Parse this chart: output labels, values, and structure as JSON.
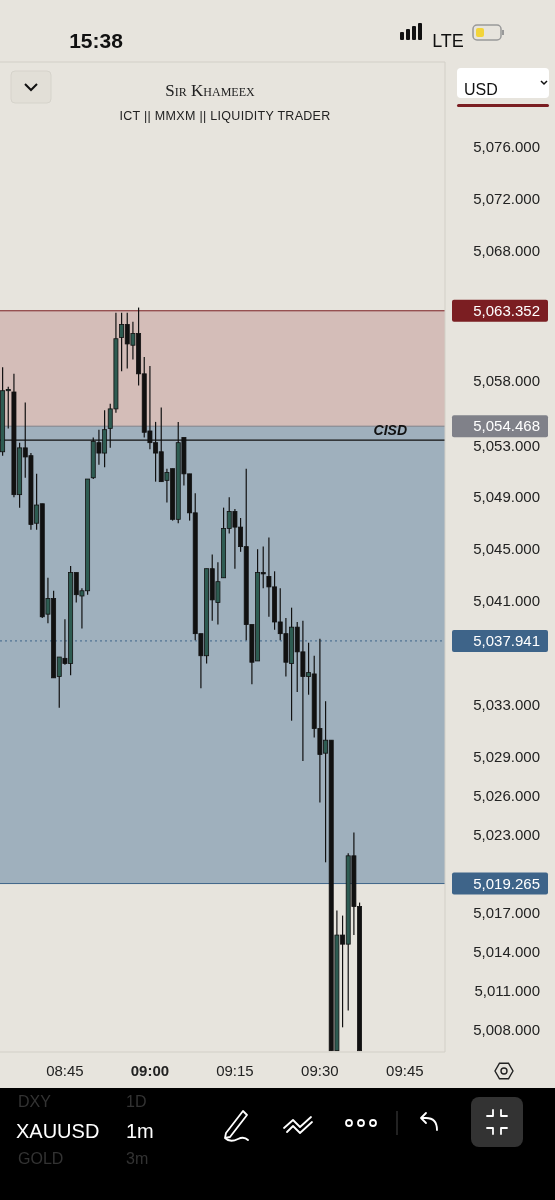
{
  "chart_data": {
    "type": "candlestick",
    "title": "Sir Khameex",
    "subtitle": "ICT || MMXM || LIQUIDITY TRADER",
    "x": [
      8.5667,
      8.5833,
      8.6,
      8.6167,
      8.6333,
      8.65,
      8.6667,
      8.6833,
      8.7,
      8.7167,
      8.7333,
      8.75,
      8.7667,
      8.7833,
      8.8,
      8.8167,
      8.8333,
      8.85,
      8.8667,
      8.8833,
      8.9,
      8.9167,
      8.9333,
      8.95,
      8.9667,
      8.9833,
      9.0,
      9.0167,
      9.0333,
      9.05,
      9.0667,
      9.0833,
      9.1,
      9.1167,
      9.1333,
      9.15,
      9.1667,
      9.1833,
      9.2,
      9.2167,
      9.2333,
      9.25,
      9.2667,
      9.2833,
      9.3,
      9.3167,
      9.3333,
      9.35,
      9.3667,
      9.3833,
      9.4,
      9.4167,
      9.4333,
      9.45,
      9.4667,
      9.4833,
      9.5,
      9.5167,
      9.5333,
      9.55,
      9.5667,
      9.5833,
      9.6,
      9.6167
    ],
    "ohlc": [
      [
        5052.5,
        5059.0,
        5052.2,
        5057.2
      ],
      [
        5057.2,
        5057.5,
        5054.3,
        5057.3
      ],
      [
        5057.1,
        5058.5,
        5049.0,
        5049.2
      ],
      [
        5049.2,
        5053.2,
        5048.2,
        5052.8
      ],
      [
        5052.8,
        5056.3,
        5050.5,
        5052.1
      ],
      [
        5052.2,
        5052.4,
        5046.5,
        5046.9
      ],
      [
        5047.0,
        5050.8,
        5046.5,
        5048.4
      ],
      [
        5048.5,
        5048.5,
        5039.7,
        5039.8
      ],
      [
        5040.0,
        5042.8,
        5039.3,
        5041.2
      ],
      [
        5041.2,
        5041.8,
        5035.1,
        5035.1
      ],
      [
        5035.2,
        5036.7,
        5032.8,
        5036.7
      ],
      [
        5036.6,
        5039.6,
        5036.1,
        5036.2
      ],
      [
        5036.2,
        5043.7,
        5035.3,
        5043.2
      ],
      [
        5043.2,
        5043.2,
        5040.9,
        5041.5
      ],
      [
        5041.4,
        5042.0,
        5038.9,
        5041.8
      ],
      [
        5041.8,
        5050.4,
        5041.5,
        5050.4
      ],
      [
        5050.5,
        5053.6,
        5050.4,
        5053.3
      ],
      [
        5053.2,
        5054.2,
        5051.5,
        5052.4
      ],
      [
        5052.4,
        5055.7,
        5051.3,
        5054.2
      ],
      [
        5054.3,
        5056.2,
        5052.8,
        5055.8
      ],
      [
        5055.8,
        5063.2,
        5055.5,
        5061.2
      ],
      [
        5061.3,
        5063.2,
        5058.7,
        5062.3
      ],
      [
        5062.3,
        5063.2,
        5058.9,
        5060.8
      ],
      [
        5060.7,
        5062.5,
        5059.6,
        5061.6
      ],
      [
        5061.6,
        5063.6,
        5057.6,
        5058.5
      ],
      [
        5058.5,
        5059.8,
        5053.6,
        5054.0
      ],
      [
        5054.1,
        5059.1,
        5052.7,
        5053.2
      ],
      [
        5053.2,
        5054.8,
        5050.2,
        5052.4
      ],
      [
        5052.5,
        5055.9,
        5050.2,
        5050.2
      ],
      [
        5050.3,
        5051.2,
        5048.6,
        5050.9
      ],
      [
        5051.2,
        5051.2,
        5047.2,
        5047.3
      ],
      [
        5047.3,
        5054.8,
        5047.0,
        5053.2
      ],
      [
        5053.6,
        5053.6,
        5049.9,
        5050.8
      ],
      [
        5050.8,
        5050.8,
        5047.2,
        5047.8
      ],
      [
        5047.8,
        5049.3,
        5038.0,
        5038.5
      ],
      [
        5038.5,
        5038.5,
        5034.3,
        5036.8
      ],
      [
        5036.8,
        5043.5,
        5036.2,
        5043.5
      ],
      [
        5043.5,
        5044.6,
        5039.5,
        5041.1
      ],
      [
        5040.9,
        5044.0,
        5039.2,
        5042.5
      ],
      [
        5042.8,
        5048.2,
        5042.8,
        5046.6
      ],
      [
        5046.6,
        5049.0,
        5046.2,
        5047.9
      ],
      [
        5047.9,
        5048.1,
        5043.5,
        5046.7
      ],
      [
        5046.7,
        5047.4,
        5044.8,
        5045.2
      ],
      [
        5045.2,
        5051.2,
        5038.0,
        5039.2
      ],
      [
        5039.2,
        5039.2,
        5034.6,
        5036.3
      ],
      [
        5036.4,
        5045.0,
        5036.4,
        5043.2
      ],
      [
        5043.2,
        5045.2,
        5042.0,
        5043.1
      ],
      [
        5042.9,
        5045.9,
        5039.8,
        5042.1
      ],
      [
        5042.1,
        5043.3,
        5038.8,
        5039.4
      ],
      [
        5039.4,
        5042.0,
        5038.0,
        5038.5
      ],
      [
        5038.5,
        5039.7,
        5035.2,
        5036.3
      ],
      [
        5036.2,
        5040.5,
        5031.8,
        5039.0
      ],
      [
        5039.0,
        5039.4,
        5034.0,
        5037.1
      ],
      [
        5037.1,
        5039.5,
        5028.7,
        5035.2
      ],
      [
        5035.2,
        5037.8,
        5033.8,
        5035.5
      ],
      [
        5035.4,
        5036.8,
        5030.5,
        5031.2
      ],
      [
        5031.2,
        5038.1,
        5025.5,
        5029.2
      ],
      [
        5029.3,
        5033.3,
        5020.9,
        5030.3
      ],
      [
        5030.3,
        5030.3,
        5006.4,
        5006.4
      ],
      [
        5006.4,
        5017.2,
        5006.4,
        5015.3
      ],
      [
        5015.3,
        5016.8,
        5008.2,
        5014.6
      ],
      [
        5014.6,
        5021.6,
        5009.5,
        5021.4
      ],
      [
        5021.4,
        5023.2,
        5015.3,
        5017.5
      ],
      [
        5017.5,
        5017.8,
        5006.4,
        5006.4
      ]
    ],
    "colors": [
      "#2e5c52",
      "#2e5c52",
      "#111111",
      "#2e5c52",
      "#111111",
      "#111111",
      "#2e5c52",
      "#111111",
      "#2e5c52",
      "#111111",
      "#2e5c52",
      "#111111",
      "#2e5c52",
      "#111111",
      "#2e5c52",
      "#2e5c52",
      "#2e5c52",
      "#111111",
      "#2e5c52",
      "#2e5c52",
      "#2e5c52",
      "#2e5c52",
      "#111111",
      "#2e5c52",
      "#111111",
      "#111111",
      "#111111",
      "#111111",
      "#111111",
      "#2e5c52",
      "#111111",
      "#2e5c52",
      "#111111",
      "#111111",
      "#111111",
      "#111111",
      "#2e5c52",
      "#111111",
      "#2e5c52",
      "#2e5c52",
      "#2e5c52",
      "#111111",
      "#111111",
      "#111111",
      "#111111",
      "#2e5c52",
      "#111111",
      "#111111",
      "#111111",
      "#111111",
      "#111111",
      "#2e5c52",
      "#111111",
      "#111111",
      "#2e5c52",
      "#111111",
      "#111111",
      "#2e5c52",
      "#111111",
      "#2e5c52",
      "#111111",
      "#2e5c52",
      "#111111",
      "#111111"
    ],
    "xlim": [
      8.559,
      9.868
    ],
    "xticks": [
      {
        "value": 8.75,
        "label": "08:45"
      },
      {
        "value": 9,
        "label": "09:00"
      },
      {
        "value": 9.25,
        "label": "09:15"
      },
      {
        "value": 9.5,
        "label": "09:30"
      },
      {
        "value": 9.75,
        "label": "09:45"
      }
    ],
    "ylim": [
      5006.3,
      5082.5
    ],
    "yticks": [
      {
        "value": 5076,
        "label": "5,076.000"
      },
      {
        "value": 5072,
        "label": "5,072.000"
      },
      {
        "value": 5068,
        "label": "5,068.000"
      },
      {
        "value": 5058,
        "label": "5,058.000"
      },
      {
        "value": 5053,
        "label": "5,053.000"
      },
      {
        "value": 5049,
        "label": "5,049.000"
      },
      {
        "value": 5045,
        "label": "5,045.000"
      },
      {
        "value": 5041,
        "label": "5,041.000"
      },
      {
        "value": 5033,
        "label": "5,033.000"
      },
      {
        "value": 5029,
        "label": "5,029.000"
      },
      {
        "value": 5026,
        "label": "5,026.000"
      },
      {
        "value": 5023,
        "label": "5,023.000"
      },
      {
        "value": 5017,
        "label": "5,017.000"
      },
      {
        "value": 5014,
        "label": "5,014.000"
      },
      {
        "value": 5011,
        "label": "5,011.000"
      },
      {
        "value": 5008,
        "label": "5,008.000"
      }
    ],
    "bands": [
      {
        "axis": "y",
        "from": 5054.468,
        "to": 5063.352,
        "color": "#d4bdb8"
      },
      {
        "axis": "y",
        "from": 5019.265,
        "to": 5054.468,
        "color": "#9fb0bd"
      }
    ],
    "ref_lines": [
      {
        "axis": "y",
        "value": 5063.352,
        "label": "5,063.352",
        "color": "#7b1e22",
        "line_style": "solid"
      },
      {
        "axis": "y",
        "value": 5054.468,
        "label": "5,054.468",
        "color": "#808189",
        "line_style": "solid"
      },
      {
        "axis": "y",
        "value": 5037.941,
        "label": "5,037.941",
        "color": "#3e6489",
        "line_style": "dotted"
      },
      {
        "axis": "y",
        "value": 5019.265,
        "label": "5,019.265",
        "color": "#3e6489",
        "line_style": "solid"
      },
      {
        "axis": "y",
        "value": 5053.4,
        "label": "CISD",
        "color": "#111111",
        "line_style": "solid"
      }
    ],
    "annotations": [
      "15:38",
      "LTE",
      "USD",
      "DXY",
      "1D",
      "XAUUSD",
      "1m",
      "GOLD",
      "3m"
    ],
    "grid": false
  }
}
